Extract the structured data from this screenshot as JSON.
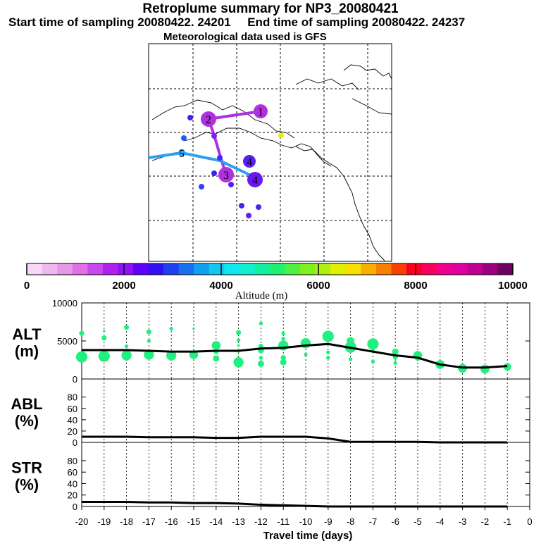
{
  "header": {
    "title": "Retroplume summary for NP3_20080421",
    "sampling_line": "Start time of sampling 20080422. 24201     End time of sampling 20080422. 24237",
    "met_line": "Meteorological data used is GFS"
  },
  "colorbar": {
    "label": "Altitude (m)",
    "ticks": [
      "0",
      "2000",
      "4000",
      "6000",
      "8000",
      "10000"
    ],
    "colors": [
      "#f8d8f8",
      "#f0b8f0",
      "#e898e8",
      "#e070e8",
      "#c848f0",
      "#b020f0",
      "#9010f8",
      "#6000f8",
      "#3010f0",
      "#2040f0",
      "#1870f0",
      "#10a0f0",
      "#10c8f0",
      "#10e8f0",
      "#10f0d0",
      "#10f0a0",
      "#20f070",
      "#50f040",
      "#80f020",
      "#b0f010",
      "#e0f000",
      "#f8e000",
      "#f8b000",
      "#f88000",
      "#f84000",
      "#f80020",
      "#f80060",
      "#f00090",
      "#e000a0",
      "#c00090",
      "#9c0080",
      "#700060"
    ]
  },
  "map": {
    "trajectories": [
      {
        "name": "purple-plume",
        "color": "#b030e0",
        "labels": [
          "1",
          "2",
          "3"
        ]
      },
      {
        "name": "blue-plume",
        "color": "#2aa0ee",
        "labels": [
          "4",
          "5"
        ]
      }
    ],
    "point_labels": [
      "1",
      "2",
      "3",
      "4",
      "4",
      "5"
    ]
  },
  "chart_data": [
    {
      "type": "line",
      "panel": "ALT",
      "ylabel": "ALT\n(m)",
      "ylabel_lines": [
        "ALT",
        "(m)"
      ],
      "x": [
        -20,
        -19,
        -18,
        -17,
        -16,
        -15,
        -14,
        -13,
        -12,
        -11,
        -10,
        -9,
        -8,
        -7,
        -6,
        -5,
        -4,
        -3,
        -2,
        -1
      ],
      "values": [
        3800,
        3800,
        3800,
        3700,
        3600,
        3600,
        3700,
        3700,
        4000,
        4100,
        4400,
        4600,
        4100,
        3600,
        3100,
        2800,
        1900,
        1500,
        1500,
        1700
      ],
      "ylim": [
        0,
        10000
      ],
      "yticks": [
        "10000",
        "5000",
        "0"
      ],
      "points_color": "#20f080",
      "scatter": [
        {
          "x": -20,
          "y": 2900,
          "s": 9
        },
        {
          "x": -20,
          "y": 6000,
          "s": 4
        },
        {
          "x": -19,
          "y": 3000,
          "s": 9
        },
        {
          "x": -19,
          "y": 5400,
          "s": 4
        },
        {
          "x": -19,
          "y": 6300,
          "s": 2
        },
        {
          "x": -18,
          "y": 3100,
          "s": 8
        },
        {
          "x": -18,
          "y": 4300,
          "s": 3
        },
        {
          "x": -18,
          "y": 6800,
          "s": 4
        },
        {
          "x": -17,
          "y": 3200,
          "s": 8
        },
        {
          "x": -17,
          "y": 5000,
          "s": 3
        },
        {
          "x": -17,
          "y": 6200,
          "s": 4
        },
        {
          "x": -16,
          "y": 3100,
          "s": 8
        },
        {
          "x": -16,
          "y": 6600,
          "s": 3
        },
        {
          "x": -15,
          "y": 3200,
          "s": 7
        },
        {
          "x": -15,
          "y": 6600,
          "s": 2
        },
        {
          "x": -14,
          "y": 2700,
          "s": 5
        },
        {
          "x": -14,
          "y": 3600,
          "s": 4
        },
        {
          "x": -14,
          "y": 4400,
          "s": 7
        },
        {
          "x": -13,
          "y": 2200,
          "s": 8
        },
        {
          "x": -13,
          "y": 3700,
          "s": 3
        },
        {
          "x": -13,
          "y": 4400,
          "s": 2
        },
        {
          "x": -13,
          "y": 5100,
          "s": 3
        },
        {
          "x": -13,
          "y": 6100,
          "s": 4
        },
        {
          "x": -12,
          "y": 2000,
          "s": 5
        },
        {
          "x": -12,
          "y": 2800,
          "s": 3
        },
        {
          "x": -12,
          "y": 3800,
          "s": 5
        },
        {
          "x": -12,
          "y": 4300,
          "s": 4
        },
        {
          "x": -12,
          "y": 7300,
          "s": 3
        },
        {
          "x": -11,
          "y": 2200,
          "s": 5
        },
        {
          "x": -11,
          "y": 2800,
          "s": 4
        },
        {
          "x": -11,
          "y": 4400,
          "s": 8
        },
        {
          "x": -11,
          "y": 5300,
          "s": 3
        },
        {
          "x": -11,
          "y": 6000,
          "s": 3
        },
        {
          "x": -10,
          "y": 3200,
          "s": 3
        },
        {
          "x": -10,
          "y": 4700,
          "s": 8
        },
        {
          "x": -9,
          "y": 2800,
          "s": 3
        },
        {
          "x": -9,
          "y": 3500,
          "s": 3
        },
        {
          "x": -9,
          "y": 5600,
          "s": 9
        },
        {
          "x": -8,
          "y": 2600,
          "s": 3
        },
        {
          "x": -8,
          "y": 4200,
          "s": 9
        },
        {
          "x": -8,
          "y": 5000,
          "s": 6
        },
        {
          "x": -7,
          "y": 2300,
          "s": 3
        },
        {
          "x": -7,
          "y": 3700,
          "s": 3
        },
        {
          "x": -7,
          "y": 4600,
          "s": 9
        },
        {
          "x": -6,
          "y": 2100,
          "s": 3
        },
        {
          "x": -6,
          "y": 2900,
          "s": 4
        },
        {
          "x": -6,
          "y": 3600,
          "s": 5
        },
        {
          "x": -5,
          "y": 2700,
          "s": 4
        },
        {
          "x": -5,
          "y": 3100,
          "s": 7
        },
        {
          "x": -4,
          "y": 1900,
          "s": 7
        },
        {
          "x": -4,
          "y": 2200,
          "s": 3
        },
        {
          "x": -3,
          "y": 1400,
          "s": 7
        },
        {
          "x": -3,
          "y": 1800,
          "s": 3
        },
        {
          "x": -2,
          "y": 1300,
          "s": 7
        },
        {
          "x": -2,
          "y": 1600,
          "s": 3
        },
        {
          "x": -1,
          "y": 1600,
          "s": 6
        }
      ]
    },
    {
      "type": "line",
      "panel": "ABL",
      "ylabel": "ABL\n(%)",
      "ylabel_lines": [
        "ABL",
        "(%)"
      ],
      "x": [
        -20,
        -19,
        -18,
        -17,
        -16,
        -15,
        -14,
        -13,
        -12,
        -11,
        -10,
        -9,
        -8,
        -7,
        -6,
        -5,
        -4,
        -3,
        -2,
        -1
      ],
      "values": [
        10,
        10,
        10,
        9,
        9,
        9,
        8,
        8,
        10,
        10,
        10,
        7,
        1,
        1,
        1,
        1,
        0,
        0,
        0,
        0
      ],
      "ylim": [
        0,
        100
      ],
      "yticks": [
        "80",
        "60",
        "40",
        "20",
        "0"
      ]
    },
    {
      "type": "line",
      "panel": "STR",
      "ylabel": "STR\n(%)",
      "ylabel_lines": [
        "STR",
        "(%)"
      ],
      "x": [
        -20,
        -19,
        -18,
        -17,
        -16,
        -15,
        -14,
        -13,
        -12,
        -11,
        -10,
        -9,
        -8,
        -7,
        -6,
        -5,
        -4,
        -3,
        -2,
        -1
      ],
      "values": [
        8,
        8,
        8,
        7,
        7,
        6,
        6,
        5,
        3,
        2,
        1,
        0,
        0,
        0,
        0,
        0,
        0,
        0,
        0,
        0
      ],
      "ylim": [
        0,
        100
      ],
      "yticks": [
        "80",
        "60",
        "40",
        "20",
        "0"
      ]
    }
  ],
  "xaxis": {
    "label": "Travel time (days)",
    "ticks": [
      "-20",
      "-19",
      "-18",
      "-17",
      "-16",
      "-15",
      "-14",
      "-13",
      "-12",
      "-11",
      "-10",
      "-9",
      "-8",
      "-7",
      "-6",
      "-5",
      "-4",
      "-3",
      "-2",
      "-1",
      "0"
    ]
  }
}
